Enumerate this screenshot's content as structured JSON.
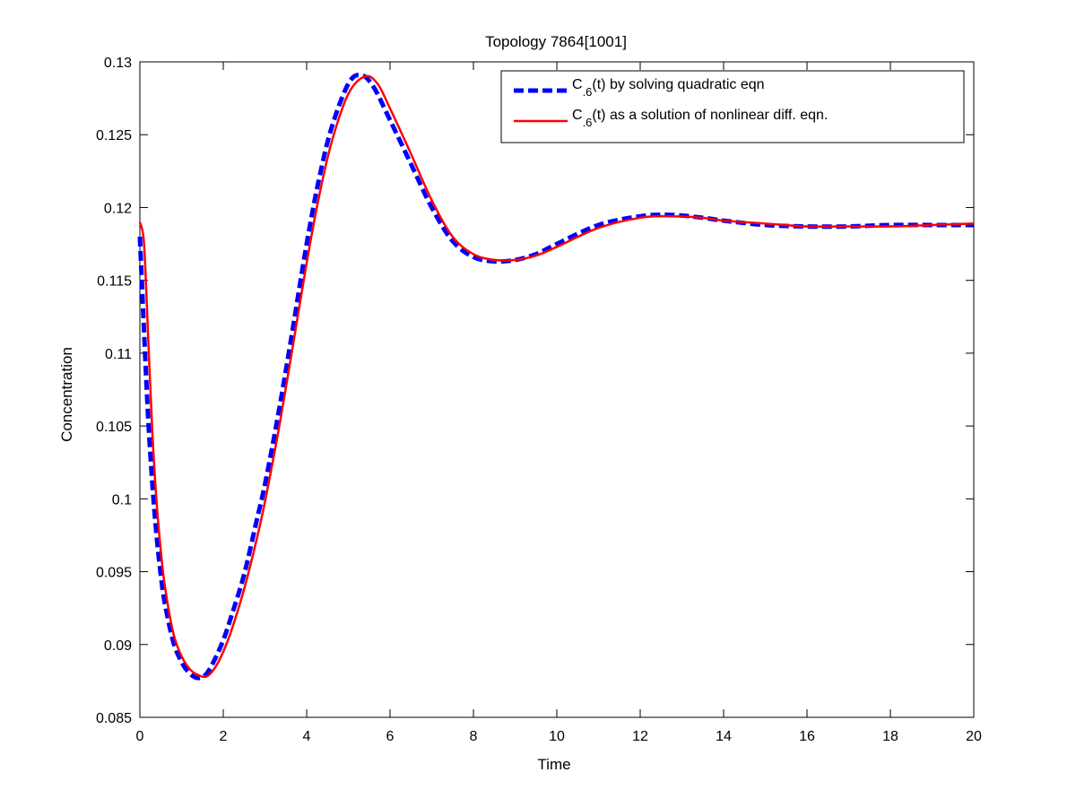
{
  "chart_data": {
    "type": "line",
    "title": "Topology 7864[1001]",
    "xlabel": "Time",
    "ylabel": "Concentration",
    "xlim": [
      0,
      20
    ],
    "ylim": [
      0.085,
      0.13
    ],
    "xticks": [
      0,
      2,
      4,
      6,
      8,
      10,
      12,
      14,
      16,
      18,
      20
    ],
    "yticks": [
      0.085,
      0.09,
      0.095,
      0.1,
      0.105,
      0.11,
      0.115,
      0.12,
      0.125,
      0.13
    ],
    "xtick_labels": [
      "0",
      "2",
      "4",
      "6",
      "8",
      "10",
      "12",
      "14",
      "16",
      "18",
      "20"
    ],
    "ytick_labels": [
      "0.085",
      "0.09",
      "0.095",
      "0.1",
      "0.105",
      "0.11",
      "0.115",
      "0.12",
      "0.125",
      "0.13"
    ],
    "grid": false,
    "legend_position": "top-right",
    "series": [
      {
        "name": "C.6(t) by solving quadratic eqn",
        "name_parts": {
          "main": "C",
          "sub": ".6",
          "rest": "(t) by solving quadratic eqn"
        },
        "color": "#0000ff",
        "style": "dashed",
        "x": [
          0,
          0.1,
          0.2,
          0.3,
          0.4,
          0.5,
          0.6,
          0.8,
          1.0,
          1.2,
          1.4,
          1.6,
          1.8,
          2.0,
          2.2,
          2.5,
          2.8,
          3.0,
          3.3,
          3.6,
          4.0,
          4.3,
          4.6,
          5.0,
          5.3,
          5.6,
          6.0,
          6.5,
          7.0,
          7.5,
          8.0,
          8.5,
          9.0,
          9.5,
          10.0,
          11.0,
          12.0,
          12.7,
          13.5,
          14.0,
          15.0,
          16.0,
          17.0,
          18.0,
          19.0,
          20.0
        ],
        "y": [
          0.118,
          0.1115,
          0.1055,
          0.101,
          0.0975,
          0.0948,
          0.0928,
          0.0902,
          0.0888,
          0.088,
          0.0877,
          0.088,
          0.089,
          0.0903,
          0.092,
          0.0948,
          0.0985,
          0.101,
          0.1055,
          0.1105,
          0.1175,
          0.122,
          0.1255,
          0.1285,
          0.1291,
          0.1283,
          0.126,
          0.123,
          0.12,
          0.1177,
          0.1166,
          0.1163,
          0.1164,
          0.1168,
          0.1175,
          0.1188,
          0.1194,
          0.1195,
          0.1193,
          0.1191,
          0.1188,
          0.1187,
          0.1187,
          0.1188,
          0.1188,
          0.1188
        ]
      },
      {
        "name": "C.6(t) as a solution of nonlinear diff. eqn.",
        "name_parts": {
          "main": "C",
          "sub": ".6",
          "rest": "(t) as a solution of nonlinear diff. eqn."
        },
        "color": "#ff0000",
        "style": "solid",
        "x": [
          0,
          0.1,
          0.2,
          0.3,
          0.4,
          0.5,
          0.6,
          0.8,
          1.0,
          1.2,
          1.4,
          1.6,
          1.8,
          2.0,
          2.2,
          2.5,
          2.8,
          3.0,
          3.3,
          3.6,
          4.0,
          4.3,
          4.6,
          5.0,
          5.4,
          5.7,
          6.0,
          6.5,
          7.0,
          7.5,
          8.0,
          8.5,
          9.0,
          9.5,
          10.0,
          11.0,
          12.0,
          12.7,
          13.5,
          14.0,
          15.0,
          16.0,
          17.0,
          18.0,
          19.0,
          20.0
        ],
        "y": [
          0.119,
          0.1175,
          0.111,
          0.1045,
          0.0998,
          0.0965,
          0.094,
          0.0908,
          0.0892,
          0.0883,
          0.0879,
          0.0878,
          0.0884,
          0.0895,
          0.091,
          0.0938,
          0.0972,
          0.0998,
          0.1043,
          0.1093,
          0.1162,
          0.1208,
          0.1245,
          0.1278,
          0.129,
          0.1285,
          0.1268,
          0.1237,
          0.1205,
          0.118,
          0.1168,
          0.1164,
          0.1164,
          0.1167,
          0.1173,
          0.1186,
          0.1193,
          0.1194,
          0.1193,
          0.1191,
          0.1189,
          0.1187,
          0.1187,
          0.1187,
          0.1188,
          0.1189
        ]
      }
    ]
  }
}
